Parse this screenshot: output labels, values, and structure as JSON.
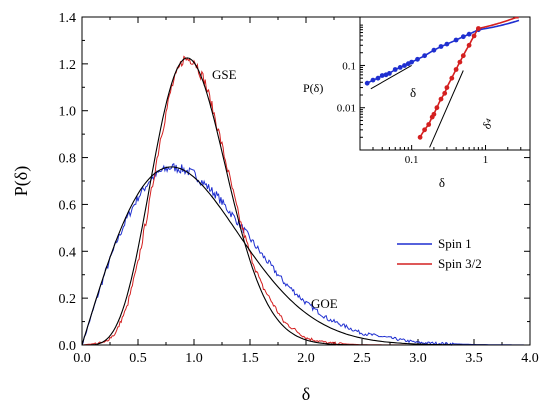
{
  "chart_data": {
    "type": "line",
    "main": {
      "xlabel": "δ",
      "ylabel": "P(δ)",
      "xlim": [
        0,
        4
      ],
      "ylim": [
        0,
        1.4
      ],
      "xticks": [
        "0.0",
        "0.5",
        "1.0",
        "1.5",
        "2.0",
        "2.5",
        "3.0",
        "3.5",
        "4.0"
      ],
      "yticks": [
        "0.0",
        "0.2",
        "0.4",
        "0.6",
        "0.8",
        "1.0",
        "1.2",
        "1.4"
      ],
      "annotations": [
        "GSE",
        "GOE"
      ],
      "legend_position": "center-right",
      "series": [
        {
          "name": "Spin 1",
          "color": "#1f2fd0",
          "kind": "histogram",
          "follows": "GOE",
          "x": [
            0,
            0.1,
            0.2,
            0.3,
            0.4,
            0.5,
            0.6,
            0.7,
            0.8,
            0.9,
            1.0,
            1.2,
            1.4,
            1.6,
            1.8,
            2.0,
            2.2,
            2.5,
            3.0,
            3.5,
            4.0
          ],
          "values": [
            0,
            0.15,
            0.3,
            0.43,
            0.54,
            0.63,
            0.7,
            0.74,
            0.76,
            0.75,
            0.73,
            0.64,
            0.52,
            0.39,
            0.27,
            0.18,
            0.11,
            0.05,
            0.01,
            0.002,
            0
          ]
        },
        {
          "name": "Spin 3/2",
          "color": "#d42020",
          "kind": "histogram",
          "follows": "GSE",
          "x": [
            0,
            0.2,
            0.3,
            0.4,
            0.5,
            0.6,
            0.7,
            0.8,
            0.9,
            1.0,
            1.1,
            1.2,
            1.3,
            1.4,
            1.5,
            1.6,
            1.8,
            2.0,
            2.2,
            2.5,
            3.0
          ],
          "values": [
            0,
            0.01,
            0.05,
            0.16,
            0.35,
            0.6,
            0.88,
            1.1,
            1.22,
            1.22,
            1.12,
            0.95,
            0.75,
            0.55,
            0.39,
            0.26,
            0.1,
            0.03,
            0.008,
            0.001,
            0
          ]
        },
        {
          "name": "GOE",
          "color": "#000000",
          "kind": "theory"
        },
        {
          "name": "GSE",
          "color": "#000000",
          "kind": "theory"
        }
      ]
    },
    "inset": {
      "type": "scatter",
      "scale": "log-log",
      "xlabel": "δ",
      "ylabel": "P(δ)",
      "xlim": [
        0.02,
        4
      ],
      "ylim": [
        0.001,
        1.4
      ],
      "xticks": [
        "0.1",
        "1"
      ],
      "yticks": [
        "0.01",
        "0.1"
      ],
      "annotations": [
        "δ",
        "δ⁴"
      ],
      "series": [
        {
          "name": "Spin 1",
          "color": "#1f2fd0",
          "x": [
            0.025,
            0.03,
            0.035,
            0.04,
            0.045,
            0.05,
            0.06,
            0.07,
            0.08,
            0.09,
            0.1,
            0.12,
            0.15,
            0.2,
            0.25,
            0.3,
            0.4,
            0.5,
            0.6,
            0.8
          ],
          "y": [
            0.038,
            0.045,
            0.05,
            0.058,
            0.06,
            0.065,
            0.08,
            0.09,
            0.1,
            0.11,
            0.12,
            0.14,
            0.17,
            0.23,
            0.28,
            0.32,
            0.4,
            0.48,
            0.55,
            0.7
          ]
        },
        {
          "name": "Spin 3/2",
          "color": "#d42020",
          "x": [
            0.13,
            0.15,
            0.17,
            0.19,
            0.2,
            0.22,
            0.25,
            0.28,
            0.3,
            0.35,
            0.4,
            0.45,
            0.5,
            0.6,
            0.7,
            0.8
          ],
          "y": [
            0.002,
            0.003,
            0.004,
            0.006,
            0.007,
            0.01,
            0.016,
            0.022,
            0.03,
            0.05,
            0.08,
            0.12,
            0.17,
            0.3,
            0.5,
            0.75
          ]
        }
      ]
    }
  }
}
